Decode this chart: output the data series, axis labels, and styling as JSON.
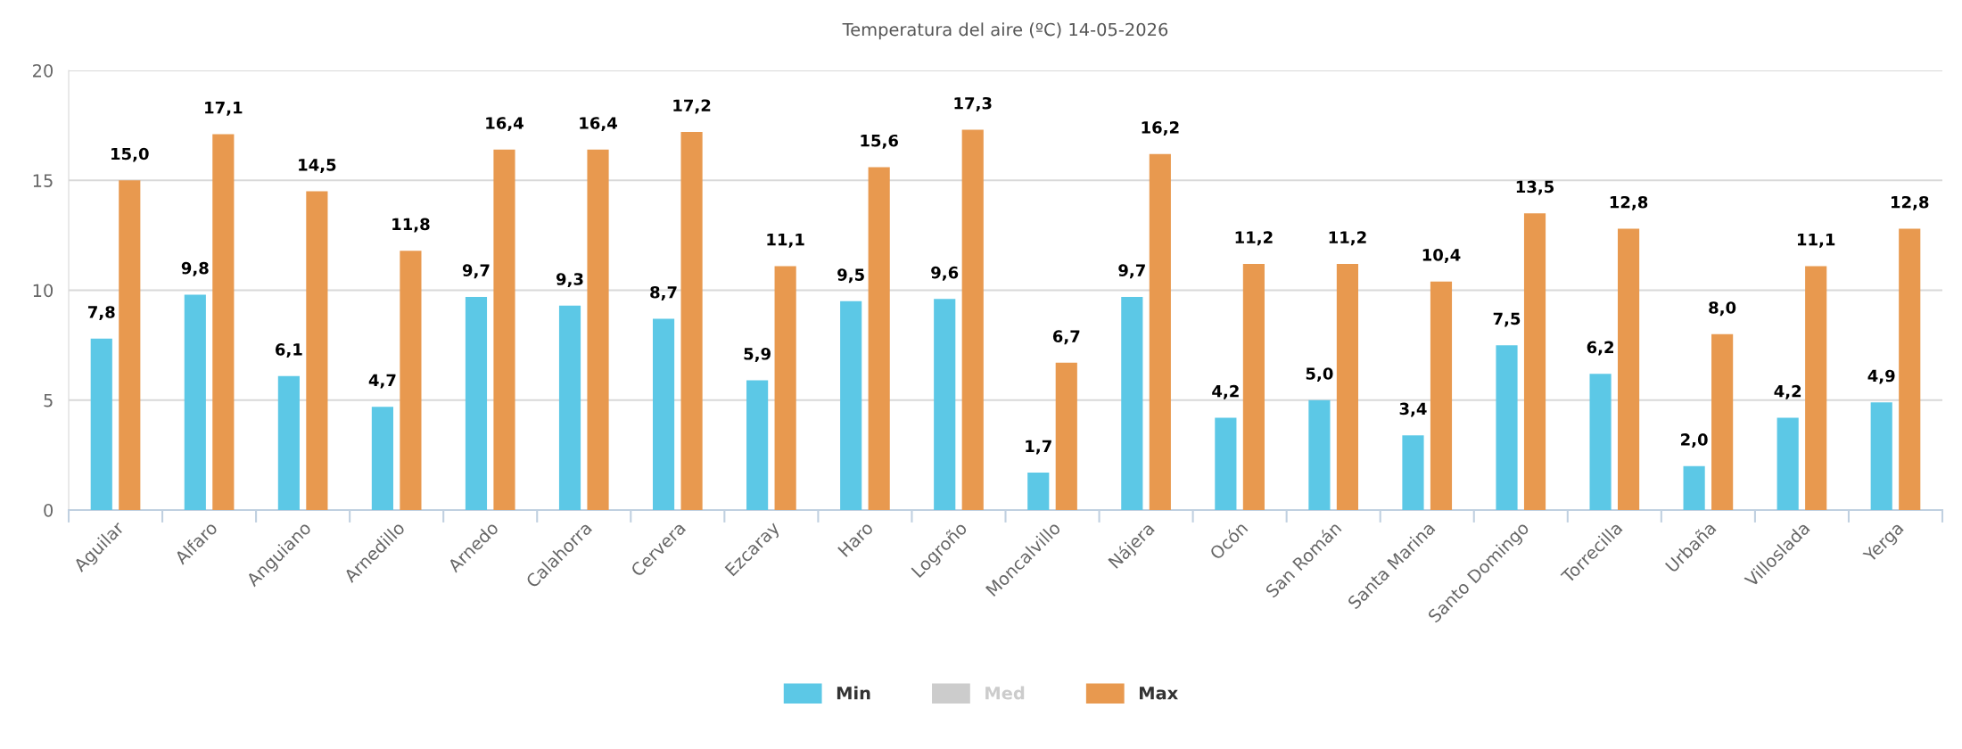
{
  "chart_data": {
    "type": "bar",
    "title": "Temperatura del aire (ºC) 14-05-2026",
    "categories": [
      "Aguilar",
      "Alfaro",
      "Anguiano",
      "Arnedillo",
      "Arnedo",
      "Calahorra",
      "Cervera",
      "Ezcaray",
      "Haro",
      "Logroño",
      "Moncalvillo",
      "Nájera",
      "Ocón",
      "San Román",
      "Santa Marina",
      "Santo Domingo",
      "Torrecilla",
      "Urbaña",
      "Villoslada",
      "Yerga"
    ],
    "series": [
      {
        "name": "Min",
        "color": "#5cc8e6",
        "values": [
          7.8,
          9.8,
          6.1,
          4.7,
          9.7,
          9.3,
          8.7,
          5.9,
          9.5,
          9.6,
          1.7,
          9.7,
          4.2,
          5.0,
          3.4,
          7.5,
          6.2,
          2.0,
          4.2,
          4.9
        ],
        "value_labels": [
          "7,8",
          "9,8",
          "6,1",
          "4,7",
          "9,7",
          "9,3",
          "8,7",
          "5,9",
          "9,5",
          "9,6",
          "1,7",
          "9,7",
          "4,2",
          "5,0",
          "3,4",
          "7,5",
          "6,2",
          "2,0",
          "4,2",
          "4,9"
        ]
      },
      {
        "name": "Med",
        "color": "#cccccc",
        "values": [
          null,
          null,
          null,
          null,
          null,
          null,
          null,
          null,
          null,
          null,
          null,
          null,
          null,
          null,
          null,
          null,
          null,
          null,
          null,
          null
        ]
      },
      {
        "name": "Max",
        "color": "#e8994f",
        "values": [
          15.0,
          17.1,
          14.5,
          11.8,
          16.4,
          16.4,
          17.2,
          11.1,
          15.6,
          17.3,
          6.7,
          16.2,
          11.2,
          11.2,
          10.4,
          13.5,
          12.8,
          8.0,
          11.1,
          12.8
        ],
        "value_labels": [
          "15,0",
          "17,1",
          "14,5",
          "11,8",
          "16,4",
          "16,4",
          "17,2",
          "11,1",
          "15,6",
          "17,3",
          "6,7",
          "16,2",
          "11,2",
          "11,2",
          "10,4",
          "13,5",
          "12,8",
          "8,0",
          "11,1",
          "12,8"
        ]
      }
    ],
    "ylim": [
      0,
      20
    ],
    "yticks": [
      0,
      5,
      10,
      15,
      20
    ],
    "grid": "y",
    "legend": "bottom"
  }
}
